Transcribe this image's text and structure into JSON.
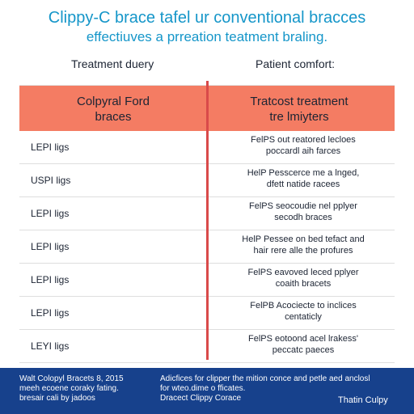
{
  "header": {
    "title": "Clippy-C brace tafel ur conventional bracces",
    "subtitle": "effectiuves a prreation teatment braling."
  },
  "columns": {
    "left_label": "Treatment duery",
    "right_label": "Patient comfort:",
    "left_header": "Colpyral Ford\nbraces",
    "right_header": "Tratcost treatment\ntre lmiyters"
  },
  "rows": [
    {
      "left": "LEPI ligs",
      "right": "FelPS out reatored lecloes\npoccardl aih farces"
    },
    {
      "left": "USPI ligs",
      "right": "HelP Pesscerce me a lnged,\ndfett natide racees"
    },
    {
      "left": "LEPI ligs",
      "right": "FelPS seocoudie nel pplyer\nsecodh braces"
    },
    {
      "left": "LEPI ligs",
      "right": "HelP Pessee on bed tefact and\nhair rere alle the profures"
    },
    {
      "left": "LEPI ligs",
      "right": "FelPS eavoved leced pplyer\ncoaith bracets"
    },
    {
      "left": "LEPI ligs",
      "right": "FelPB Acociecte to inclices\ncentaticly"
    },
    {
      "left": "LEYI ligs",
      "right": "FelPS eotoond acel lrakess'\npeccatc paeces"
    }
  ],
  "footer": {
    "left": "Walt Colopyl Bracets 8, 2015\nmeeh ecoene coraky fating.\nbresair cali by jadoos",
    "middle": "Adicfices for clipper the mition conce and petle aed anclosl\nfor wteo.dime o fficates.\nDracect Clippy Corace",
    "right": "Thatin Culpy"
  },
  "colors": {
    "title": "#1596c9",
    "header_band": "#f47c63",
    "divider": "#d94a4a",
    "footer": "#17418c"
  }
}
